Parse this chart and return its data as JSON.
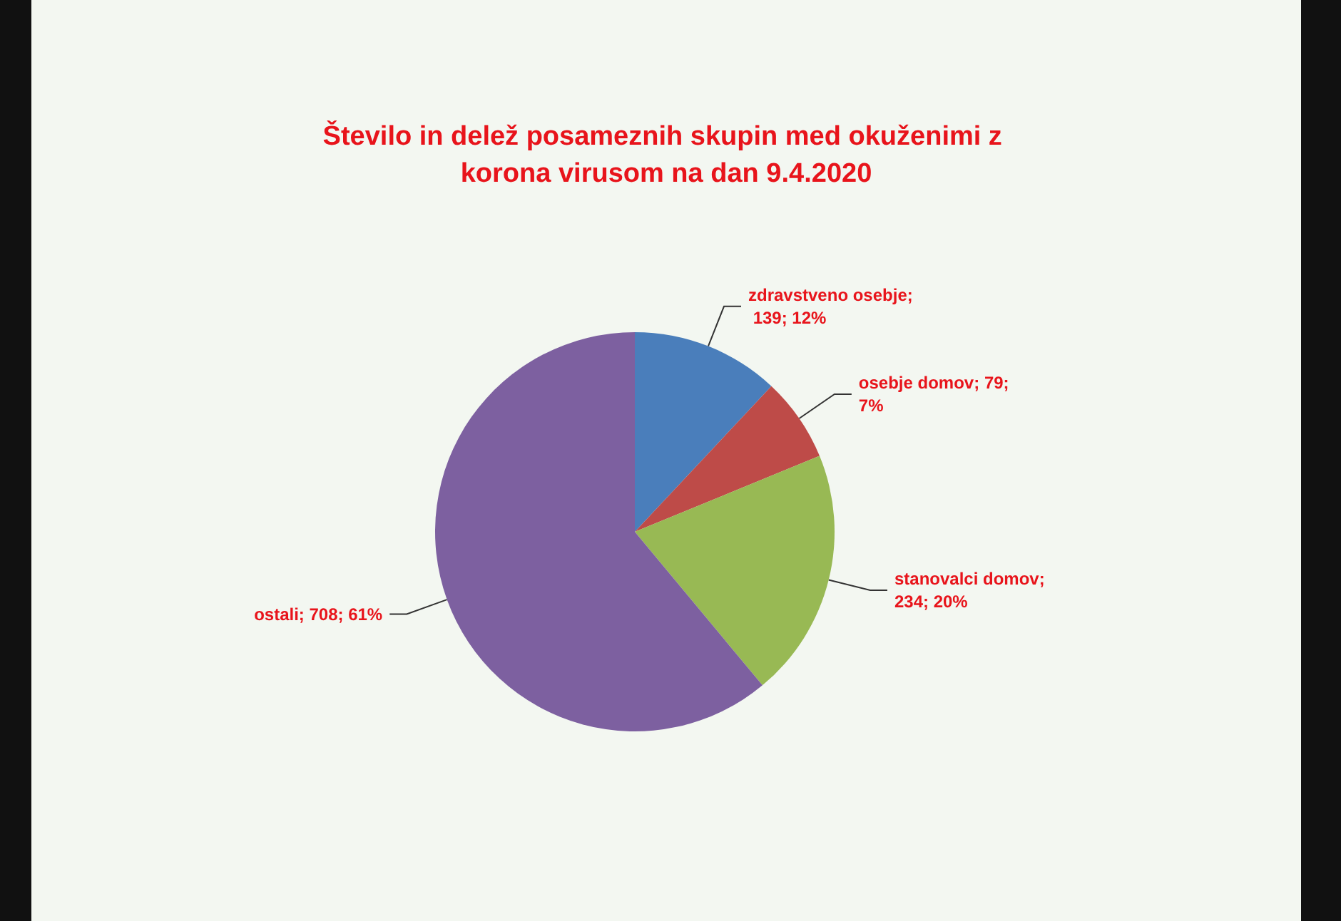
{
  "chart_data": {
    "type": "pie",
    "title": "Število in delež posameznih skupin med okuženimi z korona virusom na dan 9.4.2020",
    "categories": [
      "zdravstveno osebje",
      "osebje domov",
      "stanovalci domov",
      "ostali"
    ],
    "values": [
      139,
      79,
      234,
      708
    ],
    "colors": [
      "#4a7ebb",
      "#be4b48",
      "#98b954",
      "#7d60a0"
    ],
    "value_labels": [
      "; 139; 12%",
      "; 79; 7%",
      "; 234; 20%",
      "; 708; 61%"
    ],
    "legend": false
  }
}
